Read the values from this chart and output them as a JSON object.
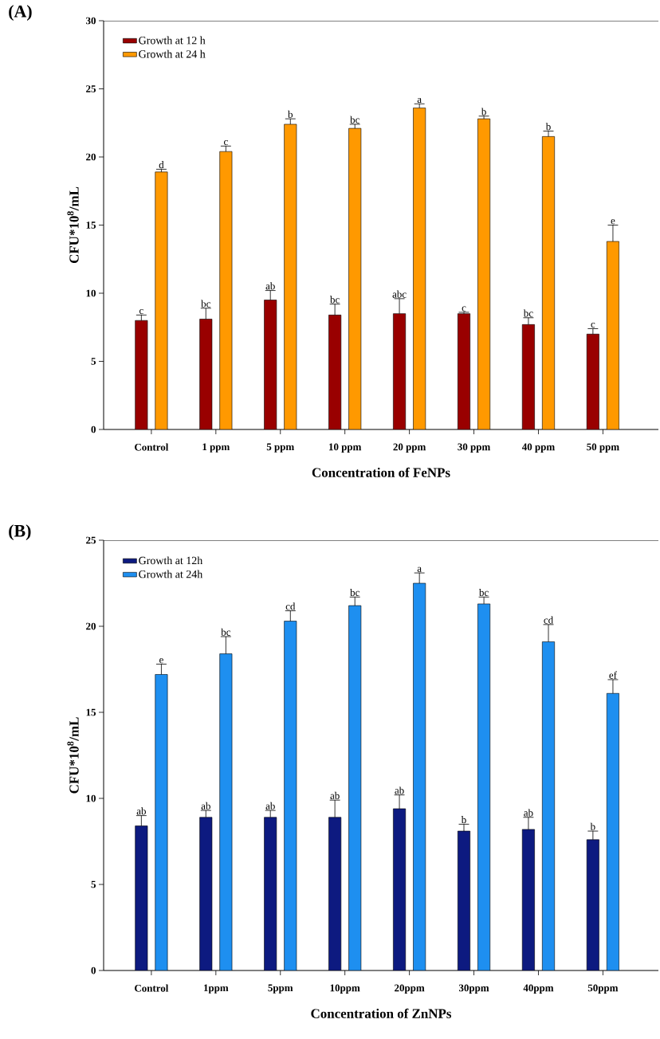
{
  "chart_data": [
    {
      "type": "bar",
      "title": "(A)",
      "xlabel": "Concentration of FeNPs",
      "ylabel": "CFU*10$^{8}$/mL",
      "categories": [
        "Control",
        "1 ppm",
        "5 ppm",
        "10 ppm",
        "20 ppm",
        "30 ppm",
        "40 ppm",
        "50 ppm"
      ],
      "series": [
        {
          "name": "Growth at 12 h",
          "color": "#990000",
          "values": [
            8.0,
            8.1,
            9.5,
            8.4,
            8.5,
            8.5,
            7.7,
            7.0
          ],
          "errors": [
            0.4,
            0.8,
            0.7,
            0.8,
            1.1,
            0.1,
            0.5,
            0.4
          ]
        },
        {
          "name": "Growth at 24 h",
          "color": "#ff9900",
          "values": [
            18.9,
            20.4,
            22.4,
            22.1,
            23.6,
            22.8,
            21.5,
            13.8
          ],
          "errors": [
            0.2,
            0.4,
            0.4,
            0.3,
            0.3,
            0.2,
            0.4,
            1.2
          ]
        }
      ],
      "ylim": [
        0,
        30
      ],
      "yticks": [
        0,
        5,
        10,
        15,
        20,
        25,
        30
      ],
      "legend": "top left",
      "annotations": [
        "c",
        "bc",
        "ab",
        "bc",
        "abc",
        "c",
        "bc",
        "c",
        "d",
        "c",
        "b",
        "bc",
        "a",
        "b",
        "b",
        "e"
      ]
    },
    {
      "type": "bar",
      "title": "(B)",
      "xlabel": "Concentration of ZnNPs",
      "ylabel": "CFU*10$^{8}$/mL",
      "categories": [
        "Control",
        "1ppm",
        "5ppm",
        "10ppm",
        "20ppm",
        "30ppm",
        "40ppm",
        "50ppm"
      ],
      "series": [
        {
          "name": "Growth at 12h",
          "color": "#0d1a80",
          "values": [
            8.4,
            8.9,
            8.9,
            8.9,
            9.4,
            8.1,
            8.2,
            7.6
          ],
          "errors": [
            0.6,
            0.4,
            0.4,
            1.0,
            0.8,
            0.4,
            0.7,
            0.5
          ]
        },
        {
          "name": "Growth at 24h",
          "color": "#1e8ff0",
          "values": [
            17.2,
            18.4,
            20.3,
            21.2,
            22.5,
            21.3,
            19.1,
            16.1
          ],
          "errors": [
            0.6,
            1.0,
            0.6,
            0.5,
            0.6,
            0.4,
            1.0,
            0.8
          ]
        }
      ],
      "ylim": [
        0,
        25
      ],
      "yticks": [
        0,
        5,
        10,
        15,
        20,
        25
      ],
      "legend": "top left",
      "annotations": [
        "ab",
        "ab",
        "ab",
        "ab",
        "ab",
        "b",
        "ab",
        "b",
        "e",
        "bc",
        "cd",
        "bc",
        "a",
        "bc",
        "cd",
        "ef"
      ]
    }
  ]
}
